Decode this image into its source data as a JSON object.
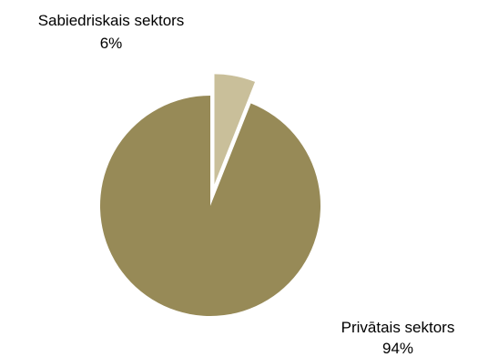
{
  "chart_data": {
    "type": "pie",
    "slices": [
      {
        "label": "Privātais sektors",
        "value": 94,
        "value_label": "94%",
        "color": "#978a57",
        "exploded": false
      },
      {
        "label": "Sabiedriskais sektors",
        "value": 6,
        "value_label": "6%",
        "color": "#c9bf9a",
        "exploded": true
      }
    ],
    "title": "",
    "legend": "none",
    "data_labels": "outside, category name with percentage"
  }
}
